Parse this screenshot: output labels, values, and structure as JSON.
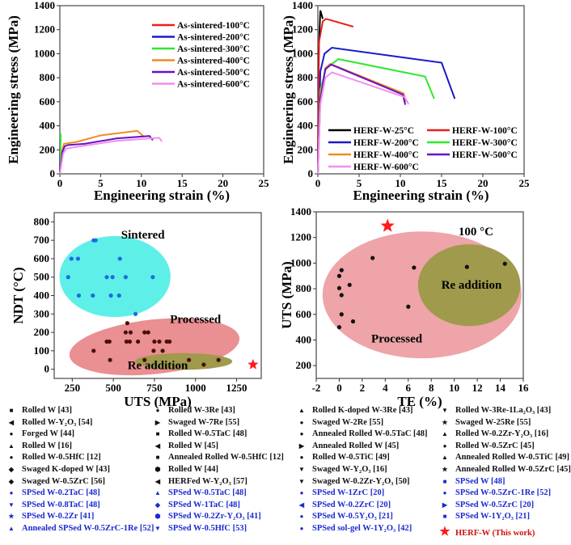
{
  "chart_data": [
    {
      "type": "line",
      "id": "a",
      "ylabel": "Engineering stress (MPa)",
      "xlabel": "Engineering strain (%)",
      "xlim": [
        0,
        25
      ],
      "ylim": [
        0,
        1400
      ],
      "xticks": [
        0,
        5,
        10,
        15,
        20,
        25
      ],
      "yticks": [
        0,
        200,
        400,
        600,
        800,
        1000,
        1200,
        1400
      ],
      "legend_placement": "top-right",
      "legend_cols": 1,
      "series": [
        {
          "name": "As-sintered-100°C",
          "color": "#e8201e",
          "points": [
            [
              0,
              0
            ],
            [
              0.05,
              280
            ],
            [
              0.1,
              250
            ]
          ]
        },
        {
          "name": "As-sintered-200°C",
          "color": "#1a1ac8",
          "points": [
            [
              0,
              0
            ],
            [
              0.05,
              290
            ],
            [
              0.08,
              270
            ]
          ]
        },
        {
          "name": "As-sintered-300°C",
          "color": "#2ee82e",
          "points": [
            [
              0.05,
              0
            ],
            [
              0.1,
              335
            ],
            [
              0.12,
              300
            ]
          ]
        },
        {
          "name": "As-sintered-400°C",
          "color": "#f08a20",
          "points": [
            [
              0,
              0
            ],
            [
              0.3,
              200
            ],
            [
              0.5,
              250
            ],
            [
              2,
              265
            ],
            [
              5,
              320
            ],
            [
              9.5,
              358
            ],
            [
              10.3,
              310
            ]
          ]
        },
        {
          "name": "As-sintered-500°C",
          "color": "#6a10c8",
          "points": [
            [
              0,
              0
            ],
            [
              0.3,
              180
            ],
            [
              0.6,
              230
            ],
            [
              1,
              240
            ],
            [
              3,
              250
            ],
            [
              7,
              295
            ],
            [
              11,
              315
            ],
            [
              11.4,
              280
            ]
          ]
        },
        {
          "name": "As-sintered-600°C",
          "color": "#f08ef0",
          "points": [
            [
              0,
              0
            ],
            [
              0.4,
              170
            ],
            [
              0.8,
              210
            ],
            [
              3,
              235
            ],
            [
              7,
              275
            ],
            [
              12.2,
              300
            ],
            [
              12.5,
              270
            ]
          ]
        }
      ]
    },
    {
      "type": "line",
      "id": "b",
      "ylabel": "Engineering stress (MPa)",
      "xlabel": "Engineering strain (%)",
      "xlim": [
        0,
        25
      ],
      "ylim": [
        0,
        1400
      ],
      "xticks": [
        0,
        5,
        10,
        15,
        20,
        25
      ],
      "yticks": [
        0,
        200,
        400,
        600,
        800,
        1000,
        1200,
        1400
      ],
      "legend_placement": "bottom",
      "legend_cols": 2,
      "series": [
        {
          "name": "HERF-W-25°C",
          "color": "#000000",
          "points": [
            [
              0,
              0
            ],
            [
              0.1,
              1000
            ],
            [
              0.3,
              1360
            ],
            [
              0.6,
              1290
            ]
          ]
        },
        {
          "name": "HERF-W-100°C",
          "color": "#e8201e",
          "points": [
            [
              0,
              0
            ],
            [
              0.15,
              1100
            ],
            [
              0.6,
              1270
            ],
            [
              1,
              1290
            ],
            [
              4.3,
              1225
            ]
          ]
        },
        {
          "name": "HERF-W-200°C",
          "color": "#1a1ac8",
          "points": [
            [
              0,
              0
            ],
            [
              0.3,
              850
            ],
            [
              0.8,
              1000
            ],
            [
              1.7,
              1050
            ],
            [
              15,
              925
            ],
            [
              16.6,
              625
            ]
          ]
        },
        {
          "name": "HERF-W-300°C",
          "color": "#2ee82e",
          "points": [
            [
              0,
              0
            ],
            [
              0.3,
              700
            ],
            [
              1,
              880
            ],
            [
              2.5,
              955
            ],
            [
              13,
              810
            ],
            [
              14.1,
              625
            ]
          ]
        },
        {
          "name": "HERF-W-400°C",
          "color": "#f08a20",
          "points": [
            [
              0,
              0
            ],
            [
              0.3,
              650
            ],
            [
              0.9,
              880
            ],
            [
              1.5,
              915
            ],
            [
              10.4,
              670
            ],
            [
              10.7,
              600
            ]
          ]
        },
        {
          "name": "HERF-W-500°C",
          "color": "#6a10c8",
          "points": [
            [
              0,
              0
            ],
            [
              0.3,
              620
            ],
            [
              0.9,
              870
            ],
            [
              1.6,
              910
            ],
            [
              10.3,
              660
            ],
            [
              10.6,
              575
            ]
          ]
        },
        {
          "name": "HERF-W-600°C",
          "color": "#f08ef0",
          "points": [
            [
              0,
              0
            ],
            [
              0.3,
              580
            ],
            [
              0.9,
              800
            ],
            [
              1.7,
              845
            ],
            [
              10.5,
              640
            ],
            [
              11,
              580
            ]
          ]
        }
      ]
    },
    {
      "type": "scatter",
      "id": "c",
      "ylabel": "NDT (°C)",
      "xlabel": "UTS (MPa)",
      "xlim": [
        140,
        1400
      ],
      "ylim": [
        -50,
        850
      ],
      "xticks": [
        250,
        500,
        750,
        1000,
        1250
      ],
      "yticks": [
        0,
        100,
        200,
        300,
        400,
        500,
        600,
        700,
        800
      ],
      "regions": [
        {
          "label": "Sintered",
          "color": "#5ef0e8",
          "center": [
            510,
            503
          ],
          "radii": [
            338,
            220
          ],
          "label_at": [
            680,
            710
          ]
        },
        {
          "label": "Processed",
          "color": "#ea8f92",
          "center": [
            750,
            122
          ],
          "radii": [
            520,
            148
          ],
          "label_at": [
            1000,
            250
          ]
        },
        {
          "label": "Re addition",
          "color": "#9f9a4c",
          "center": [
            928,
            42
          ],
          "radii": [
            296,
            45
          ],
          "label_at": [
            770,
            0
          ]
        }
      ],
      "groups": [
        {
          "color": "#1a6ee0",
          "points": [
            [
              380,
              700
            ],
            [
              392,
              700
            ],
            [
              245,
              600
            ],
            [
              285,
              600
            ],
            [
              540,
              600
            ],
            [
              225,
              500
            ],
            [
              460,
              500
            ],
            [
              495,
              500
            ],
            [
              575,
              500
            ],
            [
              740,
              500
            ],
            [
              290,
              400
            ],
            [
              375,
              400
            ],
            [
              485,
              400
            ],
            [
              535,
              400
            ],
            [
              635,
              300
            ]
          ]
        },
        {
          "color": "#4a0c0c",
          "points": [
            [
              585,
              250
            ],
            [
              575,
              200
            ],
            [
              605,
              200
            ],
            [
              690,
              200
            ],
            [
              712,
              200
            ],
            [
              460,
              150
            ],
            [
              476,
              150
            ],
            [
              580,
              150
            ],
            [
              600,
              150
            ],
            [
              650,
              150
            ],
            [
              750,
              150
            ],
            [
              780,
              150
            ],
            [
              825,
              150
            ],
            [
              842,
              150
            ],
            [
              380,
              100
            ],
            [
              745,
              100
            ],
            [
              800,
              100
            ],
            [
              480,
              50
            ],
            [
              690,
              50
            ],
            [
              960,
              50
            ],
            [
              1140,
              50
            ],
            [
              1050,
              25
            ]
          ]
        }
      ],
      "star": {
        "label": "HERF-W (This work)",
        "color": "#ff1a1a",
        "point": [
          1350,
          25
        ]
      }
    },
    {
      "type": "scatter",
      "id": "d",
      "ylabel": "UTS (MPa)",
      "xlabel": "TE (%)",
      "xlim": [
        -2,
        16
      ],
      "ylim": [
        100,
        1400
      ],
      "xticks": [
        -2,
        0,
        2,
        4,
        6,
        8,
        10,
        12,
        14,
        16
      ],
      "yticks": [
        200,
        400,
        600,
        800,
        1000,
        1200,
        1400
      ],
      "annotation": "100 °C",
      "regions": [
        {
          "label": "Processed",
          "color": "#eea4a8",
          "center": [
            7.2,
            752
          ],
          "radii": [
            8.65,
            495
          ],
          "label_at": [
            5,
            380
          ]
        },
        {
          "label": "Re addition",
          "color": "#9f9a4c",
          "center": [
            11.3,
            828
          ],
          "radii": [
            4.45,
            319
          ],
          "label_at": [
            11.5,
            800
          ]
        }
      ],
      "groups": [
        {
          "color": "#111111",
          "points": [
            [
              2.9,
              1040
            ],
            [
              0.2,
              945
            ],
            [
              0,
              900
            ],
            [
              0.9,
              830
            ],
            [
              0,
              805
            ],
            [
              0.2,
              750
            ],
            [
              0.2,
              600
            ],
            [
              1.2,
              545
            ],
            [
              0,
              500
            ],
            [
              6.5,
              965
            ],
            [
              11.1,
              970
            ],
            [
              14.4,
              995
            ],
            [
              6,
              660
            ]
          ]
        }
      ],
      "star": {
        "label": "HERF-W (This work)",
        "color": "#ff1a1a",
        "point": [
          4.2,
          1290
        ]
      }
    }
  ],
  "legend": [
    [
      {
        "m": "■",
        "c": "#111",
        "t": "Rolled W [43]"
      },
      {
        "m": "◀",
        "c": "#111",
        "t": "Rolled W-Y₂O₃ [54]"
      },
      {
        "m": "●",
        "c": "#111",
        "t": "Forged W [44]"
      },
      {
        "m": "▲",
        "c": "#111",
        "t": "Rolled W [16]"
      },
      {
        "m": "●",
        "c": "#111",
        "t": "Rolled W-0.5HfC [12]"
      },
      {
        "m": "◆",
        "c": "#111",
        "t": "Swaged K-doped W [43]"
      },
      {
        "m": "◆",
        "c": "#111",
        "t": "Swaged W-0.5ZrC [56]"
      },
      {
        "m": "●",
        "c": "#1a2ad0",
        "t": "SPSed W-0.2TaC [48]"
      },
      {
        "m": "▼",
        "c": "#1a2ad0",
        "t": "SPSed W-0.8TaC [48]"
      },
      {
        "m": "★",
        "c": "#1a2ad0",
        "t": "SPSed W-0.2Zr [41]"
      },
      {
        "m": "▲",
        "c": "#1a2ad0",
        "t": "Annealed SPSed W-0.5ZrC-1Re [52]"
      }
    ],
    [
      {
        "m": "●",
        "c": "#111",
        "t": "Rolled W-3Re [43]"
      },
      {
        "m": "▶",
        "c": "#111",
        "t": "Swaged W-7Re [55]"
      },
      {
        "m": "■",
        "c": "#111",
        "t": "Rolled W-0.5TaC [48]"
      },
      {
        "m": "◀",
        "c": "#111",
        "t": "Rolled W [45]"
      },
      {
        "m": "■",
        "c": "#111",
        "t": "Annealed Rolled W-0.5HfC [12]"
      },
      {
        "m": "⬢",
        "c": "#111",
        "t": "Rolled W [44]"
      },
      {
        "m": "◀",
        "c": "#111",
        "t": "HERFed W-Y₂O₃ [57]"
      },
      {
        "m": "▲",
        "c": "#1a2ad0",
        "t": "SPSed W-0.5TaC [48]"
      },
      {
        "m": "◆",
        "c": "#1a2ad0",
        "t": "SPSed W-1TaC [48]"
      },
      {
        "m": "⬢",
        "c": "#1a2ad0",
        "t": "SPSed W-0.2Zr-Y₂O₃ [41]"
      },
      {
        "m": "▼",
        "c": "#1a2ad0",
        "t": "SPSed W-0.5HfC [53]"
      }
    ],
    [
      {
        "m": "▲",
        "c": "#111",
        "t": "Rolled K-doped W-3Re [43]"
      },
      {
        "m": "●",
        "c": "#111",
        "t": "Swaged W-2Re [55]"
      },
      {
        "m": "●",
        "c": "#111",
        "t": "Annealed Rolled W-0.5TaC [48]"
      },
      {
        "m": "▶",
        "c": "#111",
        "t": "Annealed Rolled W [45]"
      },
      {
        "m": "●",
        "c": "#111",
        "t": "Rolled W-0.5TiC [49]"
      },
      {
        "m": "▼",
        "c": "#111",
        "t": "Swaged W-Y₂O₃ [16]"
      },
      {
        "m": "▼",
        "c": "#111",
        "t": "Swaged W-0.2Zr-Y₂O₃ [50]"
      },
      {
        "m": "●",
        "c": "#1a2ad0",
        "t": "SPSed W-1ZrC [20]"
      },
      {
        "m": "◀",
        "c": "#1a2ad0",
        "t": "SPSed W-0.2ZrC [20]"
      },
      {
        "m": "●",
        "c": "#1a2ad0",
        "t": "SPSed W-0.5Y₂O₃ [21]"
      },
      {
        "m": "●",
        "c": "#1a2ad0",
        "t": "SPSed sol-gel W-1Y₂O₃ [42]"
      }
    ],
    [
      {
        "m": "▼",
        "c": "#111",
        "t": "Rolled W-3Re-1La₂O₃ [43]"
      },
      {
        "m": "★",
        "c": "#111",
        "t": "Swaged W-25Re [55]"
      },
      {
        "m": "▲",
        "c": "#111",
        "t": "Rolled W-0.2Zr-Y₂O₃ [16]"
      },
      {
        "m": "●",
        "c": "#111",
        "t": "Rolled W-0.5ZrC [45]"
      },
      {
        "m": "▲",
        "c": "#111",
        "t": "Annealed Rolled W-0.5TiC [49]"
      },
      {
        "m": "★",
        "c": "#111",
        "t": "Annealed Rolled W-0.5ZrC [45]"
      },
      {
        "m": "■",
        "c": "#1a2ad0",
        "t": "SPSed W [48]"
      },
      {
        "m": "●",
        "c": "#1a2ad0",
        "t": "SPSed W-0.5ZrC-1Re [52]"
      },
      {
        "m": "▶",
        "c": "#1a2ad0",
        "t": "SPSed W-0.5ZrC [20]"
      },
      {
        "m": "■",
        "c": "#1a2ad0",
        "t": "SPSed W-1Y₂O₃ [21]"
      },
      {
        "m": "★",
        "c": "#ff1a1a",
        "t": "HERF-W (This work)"
      }
    ]
  ]
}
